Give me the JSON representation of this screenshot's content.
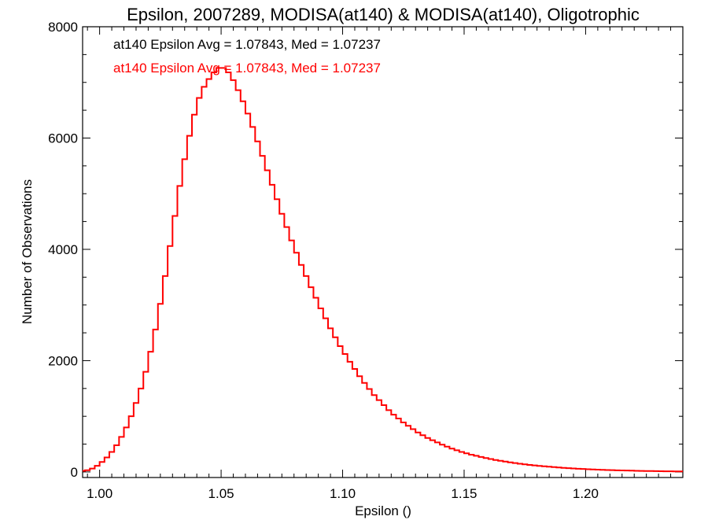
{
  "chart_data": {
    "type": "histogram",
    "title": "Epsilon, 2007289, MODISA(at140) & MODISA(at140), Oligotrophic",
    "xlabel": "Epsilon ()",
    "ylabel": "Number of Observations",
    "xlim": [
      0.993,
      1.24
    ],
    "ylim": [
      -100,
      8000
    ],
    "xticks": [
      1.0,
      1.05,
      1.1,
      1.15,
      1.2
    ],
    "xtick_labels": [
      "1.00",
      "1.05",
      "1.10",
      "1.15",
      "1.20"
    ],
    "yticks": [
      0,
      2000,
      4000,
      6000,
      8000
    ],
    "ytick_labels": [
      "0",
      "2000",
      "4000",
      "6000",
      "8000"
    ],
    "grid": false,
    "annotations": [
      {
        "text": "at140 Epsilon Avg = 1.07843, Med = 1.07237",
        "color": "#000000"
      },
      {
        "text": "at140 Epsilon Avg = 1.07843, Med = 1.07237",
        "color": "#ff0000"
      }
    ],
    "series": [
      {
        "color": "#ff0000",
        "x": [
          0.993,
          0.995,
          0.997,
          0.999,
          1.001,
          1.003,
          1.005,
          1.007,
          1.009,
          1.011,
          1.013,
          1.015,
          1.017,
          1.019,
          1.021,
          1.023,
          1.025,
          1.027,
          1.029,
          1.031,
          1.033,
          1.035,
          1.037,
          1.039,
          1.041,
          1.043,
          1.045,
          1.047,
          1.049,
          1.051,
          1.053,
          1.055,
          1.057,
          1.059,
          1.061,
          1.063,
          1.065,
          1.067,
          1.069,
          1.071,
          1.073,
          1.075,
          1.077,
          1.079,
          1.081,
          1.083,
          1.085,
          1.087,
          1.089,
          1.091,
          1.093,
          1.095,
          1.097,
          1.099,
          1.101,
          1.103,
          1.105,
          1.107,
          1.109,
          1.111,
          1.113,
          1.115,
          1.117,
          1.119,
          1.121,
          1.123,
          1.125,
          1.127,
          1.129,
          1.131,
          1.133,
          1.135,
          1.137,
          1.139,
          1.141,
          1.143,
          1.145,
          1.147,
          1.149,
          1.151,
          1.153,
          1.155,
          1.157,
          1.159,
          1.161,
          1.163,
          1.165,
          1.167,
          1.169,
          1.171,
          1.173,
          1.175,
          1.177,
          1.179,
          1.181,
          1.183,
          1.185,
          1.187,
          1.189,
          1.191,
          1.193,
          1.195,
          1.197,
          1.199,
          1.201,
          1.203,
          1.205,
          1.207,
          1.209,
          1.211,
          1.213,
          1.215,
          1.217,
          1.219,
          1.221,
          1.223,
          1.225,
          1.227,
          1.229,
          1.231,
          1.233,
          1.235,
          1.237,
          1.239
        ],
        "values": [
          20,
          30,
          60,
          110,
          180,
          260,
          360,
          480,
          630,
          800,
          1000,
          1240,
          1500,
          1800,
          2160,
          2560,
          3020,
          3520,
          4060,
          4600,
          5140,
          5620,
          6040,
          6420,
          6720,
          6920,
          7060,
          7180,
          7260,
          7260,
          7180,
          7040,
          6860,
          6660,
          6440,
          6200,
          5940,
          5680,
          5420,
          5160,
          4900,
          4640,
          4400,
          4160,
          3940,
          3720,
          3520,
          3320,
          3130,
          2940,
          2760,
          2580,
          2420,
          2260,
          2120,
          1980,
          1850,
          1720,
          1600,
          1490,
          1380,
          1290,
          1200,
          1110,
          1030,
          960,
          890,
          830,
          770,
          710,
          660,
          610,
          570,
          530,
          490,
          455,
          420,
          390,
          360,
          335,
          310,
          290,
          270,
          250,
          232,
          215,
          200,
          186,
          172,
          160,
          148,
          137,
          127,
          118,
          109,
          101,
          94,
          87,
          80,
          74,
          68,
          63,
          58,
          53,
          49,
          45,
          41,
          38,
          35,
          32,
          29,
          27,
          25,
          23,
          21,
          19,
          17,
          16,
          14,
          13,
          12,
          11,
          10,
          9
        ]
      }
    ]
  }
}
